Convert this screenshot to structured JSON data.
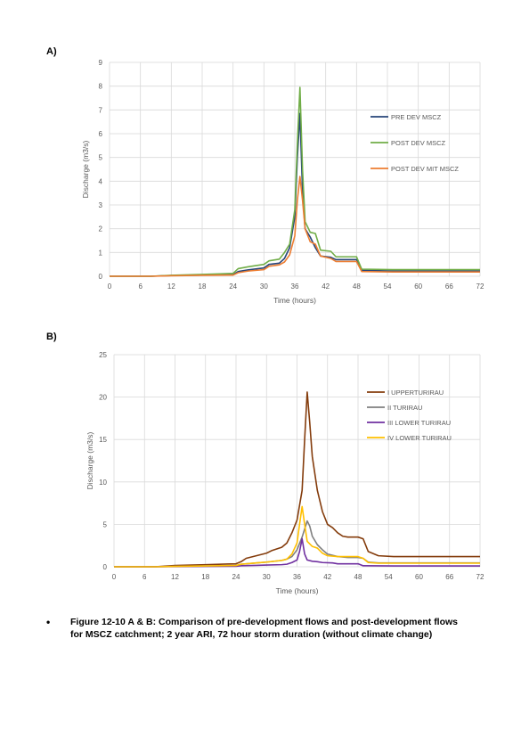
{
  "panel_labels": [
    "A)",
    "B)"
  ],
  "caption": {
    "bullet": "•",
    "text": "Figure 12-10 A & B: Comparison of pre-development flows and post-development flows for MSCZ catchment; 2 year ARI, 72 hour storm duration (without climate change)"
  },
  "chart_data": [
    {
      "type": "line",
      "xlabel": "Time (hours)",
      "ylabel": "Discharge (m3/s)",
      "xlim": [
        0,
        72
      ],
      "ylim": [
        0,
        9
      ],
      "xticks": [
        0,
        6,
        12,
        18,
        24,
        30,
        36,
        42,
        48,
        54,
        60,
        66,
        72
      ],
      "yticks": [
        0,
        1,
        2,
        3,
        4,
        5,
        6,
        7,
        8,
        9
      ],
      "grid": true,
      "legend_position": "right",
      "series": [
        {
          "name": "PRE DEV MSCZ",
          "color": "#264478",
          "points": [
            [
              0,
              0.0
            ],
            [
              8,
              0.0
            ],
            [
              12,
              0.03
            ],
            [
              18,
              0.05
            ],
            [
              24,
              0.07
            ],
            [
              25,
              0.2
            ],
            [
              27,
              0.27
            ],
            [
              30,
              0.35
            ],
            [
              31,
              0.5
            ],
            [
              33,
              0.55
            ],
            [
              34,
              0.75
            ],
            [
              35,
              1.2
            ],
            [
              36,
              2.5
            ],
            [
              36.5,
              5.0
            ],
            [
              37,
              6.85
            ],
            [
              37.5,
              3.6
            ],
            [
              38,
              2.0
            ],
            [
              39,
              1.65
            ],
            [
              40,
              1.2
            ],
            [
              41,
              0.85
            ],
            [
              43,
              0.8
            ],
            [
              44,
              0.7
            ],
            [
              46,
              0.7
            ],
            [
              48,
              0.7
            ],
            [
              49,
              0.25
            ],
            [
              55,
              0.22
            ],
            [
              72,
              0.22
            ]
          ]
        },
        {
          "name": "POST DEV MSCZ",
          "color": "#70AD47",
          "points": [
            [
              0,
              0.0
            ],
            [
              8,
              0.0
            ],
            [
              12,
              0.04
            ],
            [
              18,
              0.08
            ],
            [
              24,
              0.12
            ],
            [
              25,
              0.32
            ],
            [
              27,
              0.4
            ],
            [
              30,
              0.5
            ],
            [
              31,
              0.65
            ],
            [
              33,
              0.72
            ],
            [
              34,
              1.0
            ],
            [
              35,
              1.35
            ],
            [
              36,
              2.8
            ],
            [
              36.5,
              5.6
            ],
            [
              37,
              7.95
            ],
            [
              37.5,
              4.5
            ],
            [
              38,
              2.3
            ],
            [
              39,
              1.85
            ],
            [
              40,
              1.8
            ],
            [
              41,
              1.1
            ],
            [
              43,
              1.05
            ],
            [
              44,
              0.82
            ],
            [
              46,
              0.82
            ],
            [
              48,
              0.82
            ],
            [
              49,
              0.3
            ],
            [
              55,
              0.28
            ],
            [
              72,
              0.28
            ]
          ]
        },
        {
          "name": "POST DEV MIT MSCZ",
          "color": "#ED7D31",
          "points": [
            [
              0,
              0.0
            ],
            [
              8,
              0.0
            ],
            [
              12,
              0.02
            ],
            [
              18,
              0.04
            ],
            [
              24,
              0.05
            ],
            [
              25,
              0.15
            ],
            [
              27,
              0.22
            ],
            [
              30,
              0.28
            ],
            [
              31,
              0.42
            ],
            [
              33,
              0.48
            ],
            [
              34,
              0.6
            ],
            [
              35,
              0.9
            ],
            [
              36,
              1.7
            ],
            [
              36.5,
              3.2
            ],
            [
              37,
              4.2
            ],
            [
              37.5,
              3.2
            ],
            [
              38,
              2.0
            ],
            [
              39,
              1.45
            ],
            [
              40,
              1.35
            ],
            [
              41,
              0.85
            ],
            [
              43,
              0.75
            ],
            [
              44,
              0.62
            ],
            [
              46,
              0.62
            ],
            [
              48,
              0.62
            ],
            [
              49,
              0.2
            ],
            [
              55,
              0.18
            ],
            [
              72,
              0.18
            ]
          ]
        }
      ]
    },
    {
      "type": "line",
      "xlabel": "Time (hours)",
      "ylabel": "Discharge (m3/s)",
      "xlim": [
        0,
        72
      ],
      "ylim": [
        0,
        25
      ],
      "xticks": [
        0,
        6,
        12,
        18,
        24,
        30,
        36,
        42,
        48,
        54,
        60,
        66,
        72
      ],
      "yticks": [
        0,
        5,
        10,
        15,
        20,
        25
      ],
      "grid": true,
      "legend_position": "right",
      "series": [
        {
          "name": "I UPPERTURIRAU",
          "color": "#843C0C",
          "points": [
            [
              0,
              0.0
            ],
            [
              8,
              0.0
            ],
            [
              12,
              0.15
            ],
            [
              18,
              0.25
            ],
            [
              24,
              0.35
            ],
            [
              25,
              0.6
            ],
            [
              26,
              1.0
            ],
            [
              28,
              1.3
            ],
            [
              30,
              1.6
            ],
            [
              31,
              1.9
            ],
            [
              33,
              2.3
            ],
            [
              34,
              2.8
            ],
            [
              35,
              4.0
            ],
            [
              36,
              5.5
            ],
            [
              37,
              9.0
            ],
            [
              37.5,
              15.0
            ],
            [
              38,
              20.6
            ],
            [
              38.5,
              17.0
            ],
            [
              39,
              13.0
            ],
            [
              40,
              9.0
            ],
            [
              41,
              6.5
            ],
            [
              42,
              5.0
            ],
            [
              43,
              4.6
            ],
            [
              44,
              4.0
            ],
            [
              45,
              3.6
            ],
            [
              46,
              3.5
            ],
            [
              48,
              3.5
            ],
            [
              49,
              3.3
            ],
            [
              50,
              1.8
            ],
            [
              52,
              1.3
            ],
            [
              55,
              1.2
            ],
            [
              72,
              1.2
            ]
          ]
        },
        {
          "name": "II TURIRAU",
          "color": "#7F7F7F",
          "points": [
            [
              0,
              0.0
            ],
            [
              8,
              0.0
            ],
            [
              12,
              0.05
            ],
            [
              18,
              0.1
            ],
            [
              24,
              0.15
            ],
            [
              25,
              0.3
            ],
            [
              28,
              0.45
            ],
            [
              30,
              0.55
            ],
            [
              33,
              0.75
            ],
            [
              34,
              0.9
            ],
            [
              35,
              1.2
            ],
            [
              36,
              2.0
            ],
            [
              37,
              3.5
            ],
            [
              38,
              5.4
            ],
            [
              38.5,
              4.8
            ],
            [
              39,
              3.6
            ],
            [
              40,
              2.6
            ],
            [
              41,
              2.0
            ],
            [
              42,
              1.5
            ],
            [
              44,
              1.2
            ],
            [
              46,
              1.1
            ],
            [
              48,
              1.1
            ],
            [
              49,
              1.0
            ],
            [
              50,
              0.55
            ],
            [
              52,
              0.45
            ],
            [
              72,
              0.45
            ]
          ]
        },
        {
          "name": "III LOWER TURIRAU",
          "color": "#7030A0",
          "points": [
            [
              0,
              0.0
            ],
            [
              8,
              0.0
            ],
            [
              12,
              0.02
            ],
            [
              18,
              0.04
            ],
            [
              24,
              0.06
            ],
            [
              25,
              0.12
            ],
            [
              28,
              0.16
            ],
            [
              30,
              0.2
            ],
            [
              33,
              0.25
            ],
            [
              34,
              0.3
            ],
            [
              35,
              0.5
            ],
            [
              36,
              0.8
            ],
            [
              36.5,
              1.8
            ],
            [
              37,
              3.3
            ],
            [
              37.5,
              1.5
            ],
            [
              38,
              0.8
            ],
            [
              39,
              0.65
            ],
            [
              40,
              0.6
            ],
            [
              41,
              0.5
            ],
            [
              43,
              0.45
            ],
            [
              44,
              0.35
            ],
            [
              46,
              0.35
            ],
            [
              48,
              0.35
            ],
            [
              49,
              0.12
            ],
            [
              55,
              0.1
            ],
            [
              72,
              0.1
            ]
          ]
        },
        {
          "name": "IV LOWER TURIRAU",
          "color": "#FFC000",
          "points": [
            [
              0,
              0.0
            ],
            [
              8,
              0.0
            ],
            [
              12,
              0.05
            ],
            [
              18,
              0.1
            ],
            [
              24,
              0.15
            ],
            [
              25,
              0.3
            ],
            [
              28,
              0.45
            ],
            [
              30,
              0.55
            ],
            [
              33,
              0.75
            ],
            [
              34,
              0.9
            ],
            [
              35,
              1.5
            ],
            [
              36,
              2.8
            ],
            [
              36.5,
              5.0
            ],
            [
              37,
              7.1
            ],
            [
              37.5,
              5.0
            ],
            [
              38,
              3.0
            ],
            [
              39,
              2.4
            ],
            [
              40,
              2.2
            ],
            [
              41,
              1.6
            ],
            [
              42,
              1.3
            ],
            [
              44,
              1.2
            ],
            [
              46,
              1.2
            ],
            [
              48,
              1.2
            ],
            [
              49,
              1.0
            ],
            [
              50,
              0.5
            ],
            [
              52,
              0.42
            ],
            [
              72,
              0.42
            ]
          ]
        }
      ]
    }
  ]
}
